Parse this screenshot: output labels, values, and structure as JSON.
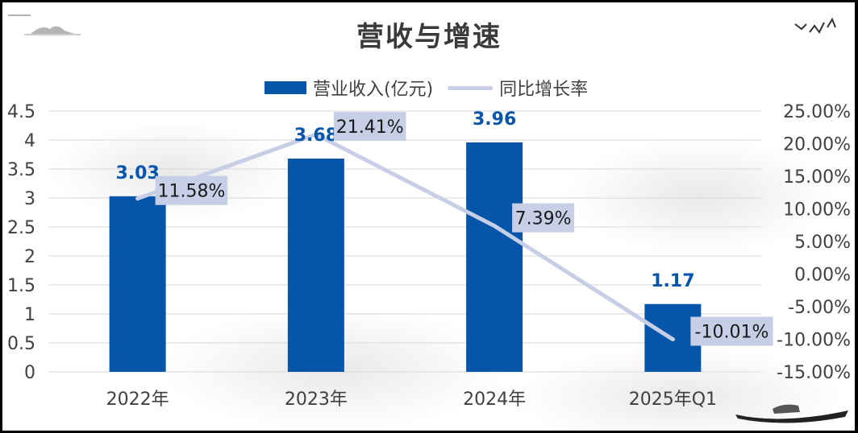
{
  "chart_data": {
    "type": "bar",
    "title": "营收与增速",
    "categories": [
      "2022年",
      "2023年",
      "2024年",
      "2025年Q1"
    ],
    "series": [
      {
        "name": "营业收入(亿元)",
        "type": "bar",
        "axis": "left",
        "values": [
          3.03,
          3.68,
          3.96,
          1.17
        ],
        "labels": [
          "3.03",
          "3.68",
          "3.96",
          "1.17"
        ],
        "color": "#0556aa"
      },
      {
        "name": "同比增长率",
        "type": "line",
        "axis": "right",
        "values": [
          11.58,
          21.41,
          7.39,
          -10.01
        ],
        "labels": [
          "11.58%",
          "21.41%",
          "7.39%",
          "-10.01%"
        ],
        "color": "#c7cfe7"
      }
    ],
    "y_left": {
      "ylim": [
        0,
        4.5
      ],
      "ticks": [
        "0",
        "0.5",
        "1",
        "1.5",
        "2",
        "2.5",
        "3",
        "3.5",
        "4",
        "4.5"
      ]
    },
    "y_right": {
      "ylim": [
        -15,
        25
      ],
      "ticks": [
        "-15.00%",
        "-10.00%",
        "-5.00%",
        "0.00%",
        "5.00%",
        "10.00%",
        "15.00%",
        "20.00%",
        "25.00%"
      ]
    },
    "grid": true,
    "legend_position": "top"
  },
  "colors": {
    "bar": "#0556aa",
    "line": "#c7cfe7",
    "label_box": "#c7cfe7",
    "grid": "#d9d9d9"
  }
}
